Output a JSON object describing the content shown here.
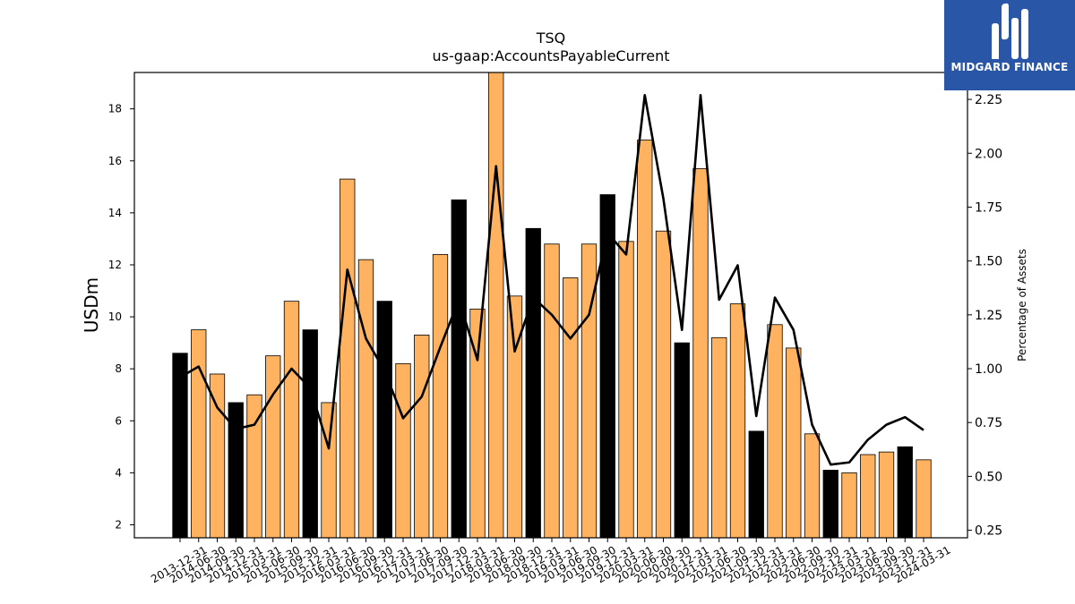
{
  "brand": {
    "name": "MIDGARD FINANCE",
    "bg_color": "#2a56a8"
  },
  "chart_data": {
    "type": "bar",
    "title": "TSQ",
    "subtitle": "us-gaap:AccountsPayableCurrent",
    "ylabel": "USDm",
    "y2label": "Percentage of Assets",
    "ylim": [
      1.5,
      19.4
    ],
    "y2lim": [
      0.215,
      2.375
    ],
    "yticks": [
      2,
      4,
      6,
      8,
      10,
      12,
      14,
      16,
      18
    ],
    "y2ticks": [
      "0.25",
      "0.50",
      "0.75",
      "1.00",
      "1.25",
      "1.50",
      "1.75",
      "2.00",
      "2.25"
    ],
    "colors": {
      "q4": "#000000",
      "other": "#ffb360",
      "line": "#000000"
    },
    "categories": [
      "2013-12-31",
      "2014-06-30",
      "2014-09-30",
      "2014-12-31",
      "2015-03-31",
      "2015-06-30",
      "2015-09-30",
      "2015-12-31",
      "2016-03-31",
      "2016-06-30",
      "2016-09-30",
      "2016-12-31",
      "2017-03-31",
      "2017-06-30",
      "2017-09-30",
      "2017-12-31",
      "2018-03-31",
      "2018-06-30",
      "2018-09-30",
      "2018-12-31",
      "2019-03-31",
      "2019-06-30",
      "2019-09-30",
      "2019-12-31",
      "2020-03-31",
      "2020-06-30",
      "2020-09-30",
      "2020-12-31",
      "2021-03-31",
      "2021-06-30",
      "2021-09-30",
      "2021-12-31",
      "2022-03-31",
      "2022-06-30",
      "2022-09-30",
      "2022-12-31",
      "2023-03-31",
      "2023-06-30",
      "2023-09-30",
      "2023-12-31",
      "2024-03-31"
    ],
    "series": [
      {
        "kind": "bar",
        "values": [
          8.6,
          9.5,
          7.8,
          6.7,
          7.0,
          8.5,
          10.6,
          9.5,
          6.7,
          15.3,
          12.2,
          10.6,
          8.2,
          9.3,
          12.4,
          14.5,
          10.3,
          19.4,
          10.8,
          13.4,
          12.8,
          11.5,
          12.8,
          14.7,
          12.9,
          16.8,
          13.3,
          9.0,
          15.7,
          9.2,
          10.5,
          5.6,
          9.7,
          8.8,
          5.5,
          4.1,
          4.0,
          4.7,
          4.8,
          5.0,
          4.5
        ],
        "is_q4": [
          true,
          false,
          false,
          true,
          false,
          false,
          false,
          true,
          false,
          false,
          false,
          true,
          false,
          false,
          false,
          true,
          false,
          false,
          false,
          true,
          false,
          false,
          false,
          true,
          false,
          false,
          false,
          true,
          false,
          false,
          false,
          true,
          false,
          false,
          false,
          true,
          false,
          false,
          false,
          true,
          false
        ]
      },
      {
        "kind": "line",
        "values": [
          0.96,
          1.01,
          0.82,
          0.72,
          0.74,
          0.88,
          1.0,
          0.91,
          0.63,
          1.46,
          1.14,
          0.99,
          0.77,
          0.87,
          1.1,
          1.32,
          1.04,
          1.94,
          1.08,
          1.33,
          1.25,
          1.14,
          1.25,
          1.63,
          1.53,
          2.27,
          1.79,
          1.18,
          2.27,
          1.32,
          1.48,
          0.78,
          1.33,
          1.18,
          0.74,
          0.555,
          0.565,
          0.67,
          0.74,
          0.775,
          0.715
        ]
      }
    ]
  }
}
